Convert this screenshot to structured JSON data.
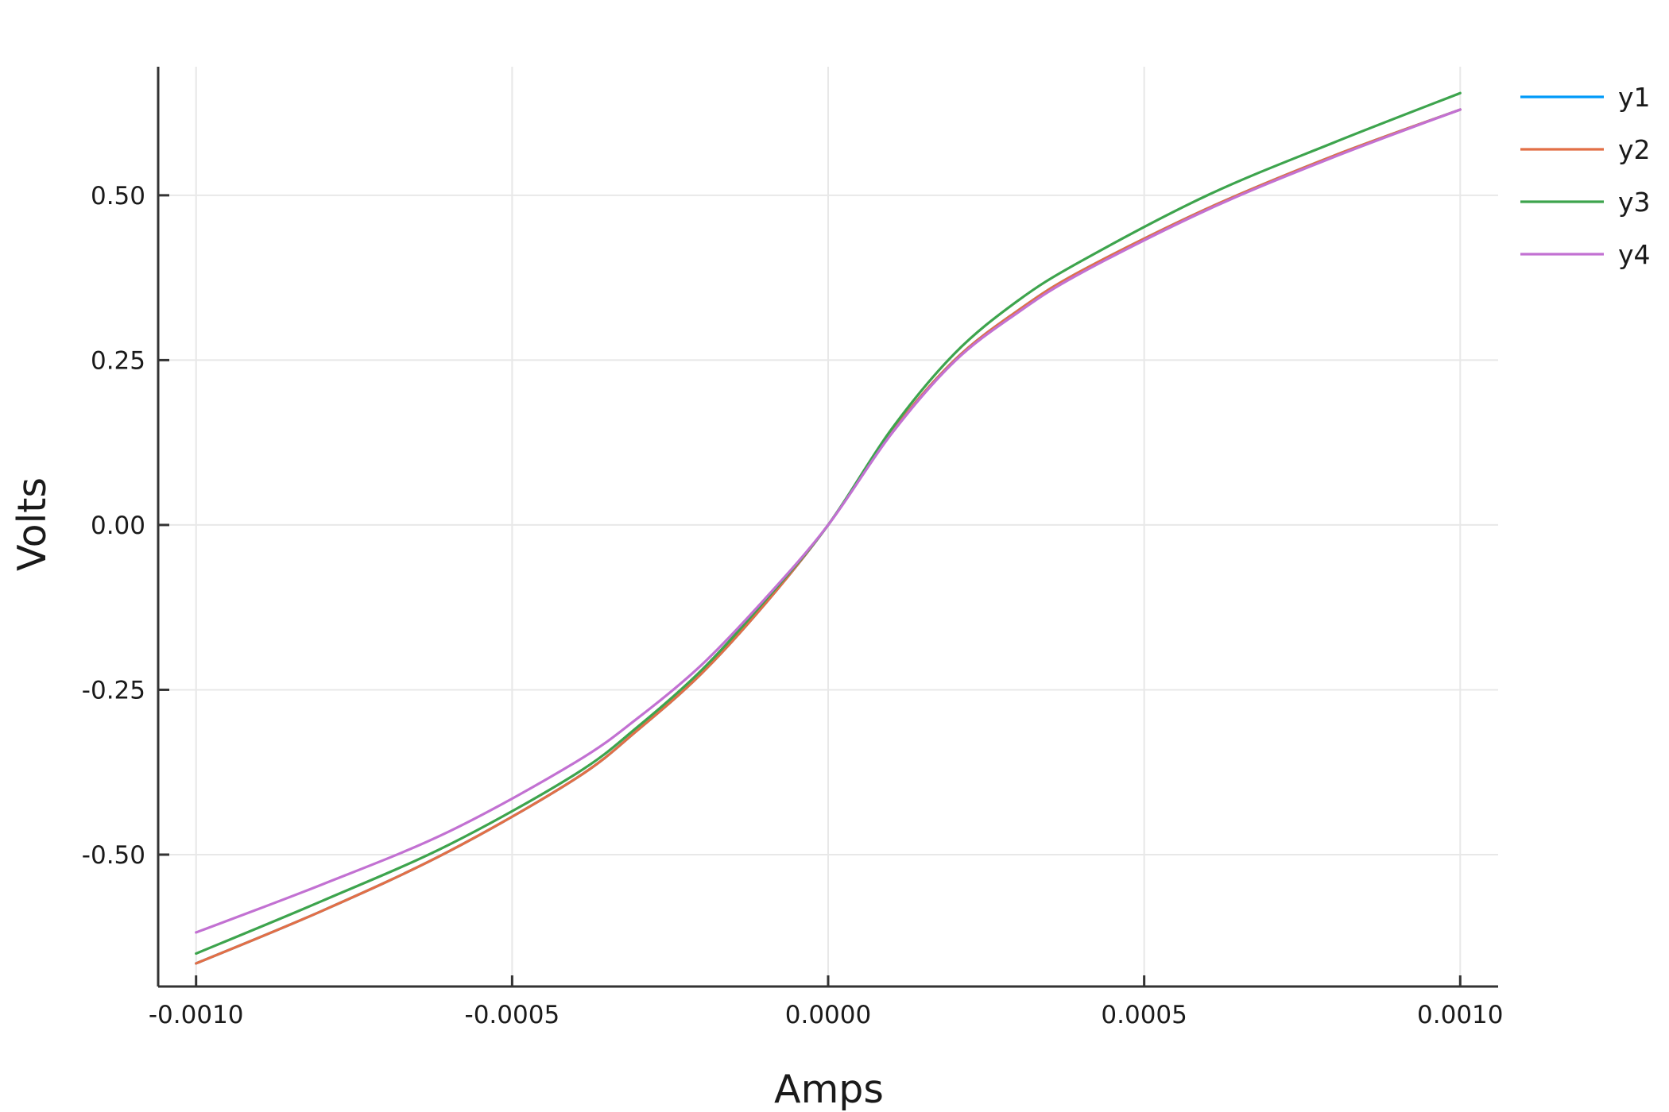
{
  "chart_data": {
    "type": "line",
    "xlabel": "Amps",
    "ylabel": "Volts",
    "xlim": [
      -0.00106,
      0.00106
    ],
    "ylim": [
      -0.7,
      0.695
    ],
    "grid": true,
    "legend_position": "top-right (outside plot)",
    "x_ticks": [
      -0.001,
      -0.0005,
      0.0,
      0.0005,
      0.001
    ],
    "x_tick_labels": [
      "-0.0010",
      "-0.0005",
      "0.0000",
      "0.0005",
      "0.0010"
    ],
    "y_ticks": [
      -0.5,
      -0.25,
      0.0,
      0.25,
      0.5
    ],
    "y_tick_labels": [
      "-0.50",
      "-0.25",
      "0.00",
      "0.25",
      "0.50"
    ],
    "x": [
      -0.001,
      -0.0008,
      -0.0006,
      -0.0004,
      -0.0003,
      -0.0002,
      -0.0001,
      0.0,
      0.0001,
      0.0002,
      0.0003,
      0.0004,
      0.0006,
      0.0008,
      0.001
    ],
    "series": [
      {
        "name": "y1",
        "color": "#009af9",
        "values": [
          -0.665,
          -0.585,
          -0.495,
          -0.385,
          -0.31,
          -0.225,
          -0.12,
          0.0,
          0.14,
          0.25,
          0.325,
          0.385,
          0.48,
          0.56,
          0.63
        ]
      },
      {
        "name": "y2",
        "color": "#e26f46",
        "values": [
          -0.665,
          -0.585,
          -0.495,
          -0.385,
          -0.31,
          -0.225,
          -0.12,
          0.0,
          0.14,
          0.25,
          0.325,
          0.385,
          0.48,
          0.56,
          0.63
        ]
      },
      {
        "name": "y3",
        "color": "#3da44d",
        "values": [
          -0.65,
          -0.57,
          -0.485,
          -0.378,
          -0.305,
          -0.22,
          -0.115,
          0.0,
          0.145,
          0.26,
          0.34,
          0.4,
          0.5,
          0.58,
          0.655
        ]
      },
      {
        "name": "y4",
        "color": "#c271d2",
        "values": [
          -0.618,
          -0.545,
          -0.465,
          -0.36,
          -0.292,
          -0.212,
          -0.112,
          0.0,
          0.138,
          0.248,
          0.322,
          0.382,
          0.478,
          0.558,
          0.63
        ]
      }
    ]
  }
}
